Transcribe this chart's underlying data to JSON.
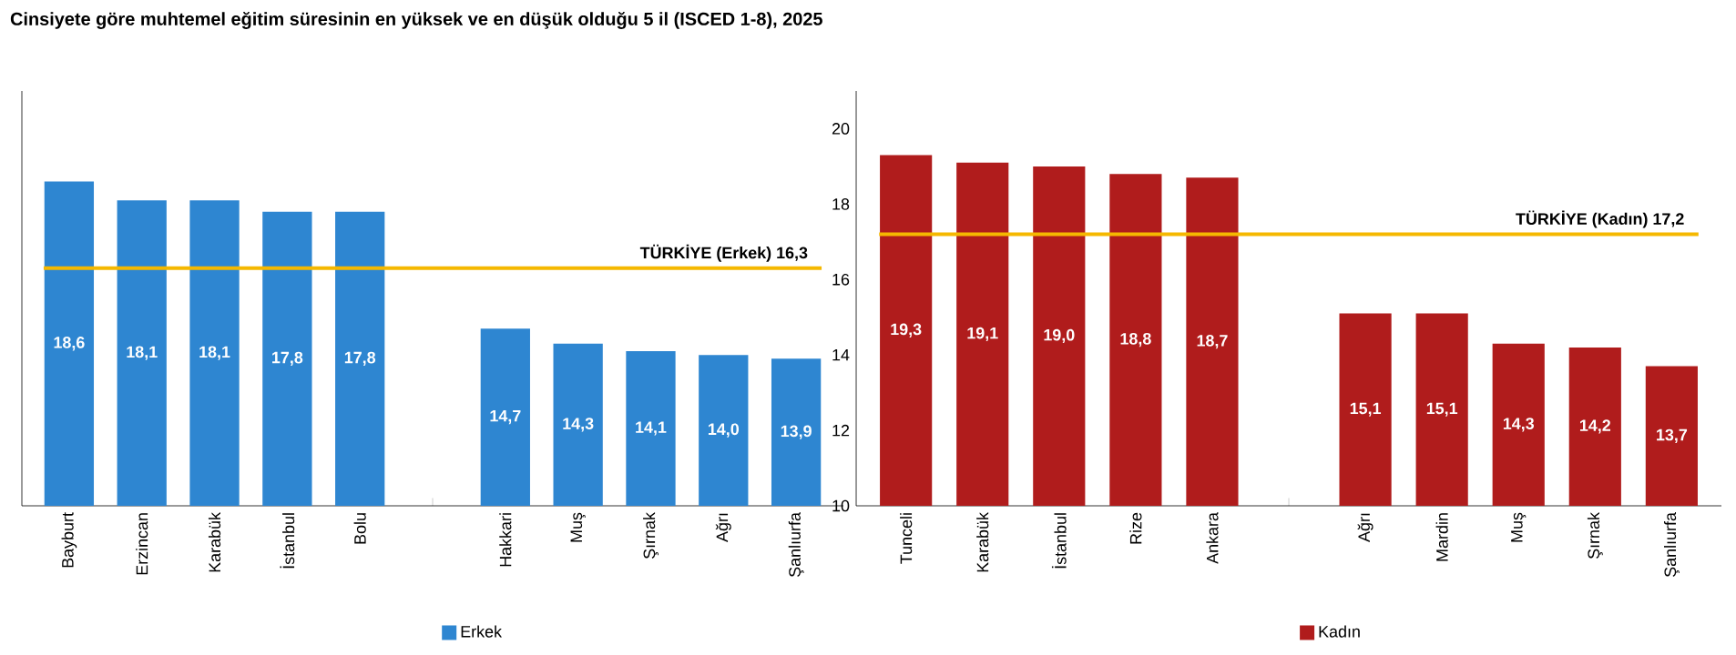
{
  "chart_data": [
    {
      "type": "bar",
      "title": "Cinsiyete göre muhtemel eğitim süresinin en yüksek ve en düşük olduğu 5 il (ISCED 1-8), 2025",
      "categories": [
        "Bayburt",
        "Erzincan",
        "Karabük",
        "İstanbul",
        "Bolu",
        null,
        "Hakkari",
        "Muş",
        "Şırnak",
        "Ağrı",
        "Şanlıurfa"
      ],
      "series": [
        {
          "name": "Erkek",
          "color": "#2e86d1",
          "values": [
            18.6,
            18.1,
            18.1,
            17.8,
            17.8,
            null,
            14.7,
            14.3,
            14.1,
            14.0,
            13.9
          ],
          "value_labels": [
            "18,6",
            "18,1",
            "18,1",
            "17,8",
            "17,8",
            null,
            "14,7",
            "14,3",
            "14,1",
            "14,0",
            "13,9"
          ]
        }
      ],
      "ylim": [
        10,
        21
      ],
      "tick_labels": "x",
      "legend": "bottom",
      "ref_lines": [
        {
          "axis": "y",
          "value": 16.3,
          "label": "TÜRKİYE (Erkek) 16,3",
          "color": "#f5b800"
        }
      ]
    },
    {
      "type": "bar",
      "categories": [
        "Tunceli",
        "Karabük",
        "İstanbul",
        "Rize",
        "Ankara",
        null,
        "Ağrı",
        "Mardin",
        "Muş",
        "Şırnak",
        "Şanlıurfa"
      ],
      "series": [
        {
          "name": "Kadın",
          "color": "#b01c1c",
          "values": [
            19.3,
            19.1,
            19.0,
            18.8,
            18.7,
            null,
            15.1,
            15.1,
            14.3,
            14.2,
            13.7
          ],
          "value_labels": [
            "19,3",
            "19,1",
            "19,0",
            "18,8",
            "18,7",
            null,
            "15,1",
            "15,1",
            "14,3",
            "14,2",
            "13,7"
          ]
        }
      ],
      "ylim": [
        10,
        21
      ],
      "yticks": [
        10,
        12,
        14,
        16,
        18,
        20
      ],
      "legend": "bottom",
      "ref_lines": [
        {
          "axis": "y",
          "value": 17.2,
          "label": "TÜRKİYE (Kadın) 17,2",
          "color": "#f5b800"
        }
      ]
    }
  ]
}
